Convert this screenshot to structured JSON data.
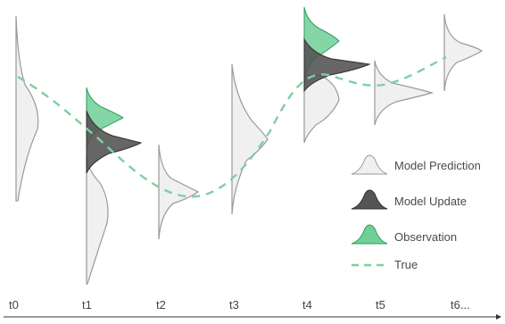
{
  "time_axis": {
    "ticks": [
      "t0",
      "t1",
      "t2",
      "t3",
      "t4",
      "t5",
      "t6..."
    ]
  },
  "legend": {
    "items": [
      {
        "key": "prediction",
        "label": "Model Prediction"
      },
      {
        "key": "update",
        "label": "Model Update"
      },
      {
        "key": "observation",
        "label": "Observation"
      },
      {
        "key": "true",
        "label": "True"
      }
    ]
  },
  "colors": {
    "prediction_fill": "#f0f0f0",
    "prediction_stroke": "#9a9a9a",
    "update_fill": "#555555",
    "update_stroke": "#2f2f2f",
    "observation_fill": "#6fcf97",
    "observation_stroke": "#2e9b5e",
    "true_line": "#7dcfa0",
    "axis": "#333333"
  }
}
